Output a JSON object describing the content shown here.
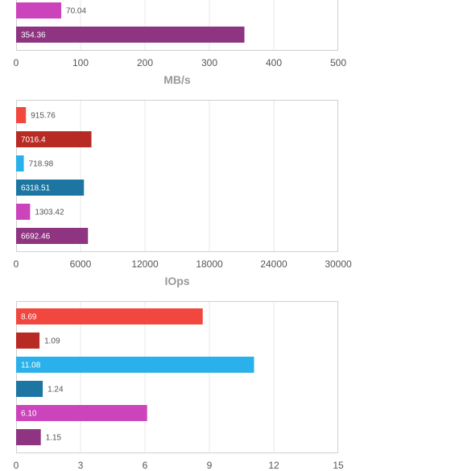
{
  "chart_data": [
    {
      "type": "bar",
      "orientation": "horizontal",
      "xlabel": "MB/s",
      "xlim": [
        0,
        500
      ],
      "ticks": [
        "0",
        "100",
        "200",
        "300",
        "400",
        "500"
      ],
      "grid": true,
      "bars": [
        {
          "label": "70.04",
          "value": 70.04,
          "color": "#cc44bb"
        },
        {
          "label": "354.36",
          "value": 354.36,
          "color": "#8e3480"
        }
      ]
    },
    {
      "type": "bar",
      "orientation": "horizontal",
      "xlabel": "IOps",
      "xlim": [
        0,
        30000
      ],
      "ticks": [
        "0",
        "6000",
        "12000",
        "18000",
        "24000",
        "30000"
      ],
      "grid": true,
      "bars": [
        {
          "label": "915.76",
          "value": 915.76,
          "color": "#f2473f"
        },
        {
          "label": "7016.4",
          "value": 7016.4,
          "color": "#b82b24"
        },
        {
          "label": "718.98",
          "value": 718.98,
          "color": "#2ab0ea"
        },
        {
          "label": "6318.51",
          "value": 6318.51,
          "color": "#1d76a2"
        },
        {
          "label": "1303.42",
          "value": 1303.42,
          "color": "#cc44bb"
        },
        {
          "label": "6692.46",
          "value": 6692.46,
          "color": "#8e3480"
        }
      ]
    },
    {
      "type": "bar",
      "orientation": "horizontal",
      "xlabel": "",
      "xlim": [
        0,
        15
      ],
      "ticks": [
        "0",
        "3",
        "6",
        "9",
        "12",
        "15"
      ],
      "grid": true,
      "bars": [
        {
          "label": "8.69",
          "value": 8.69,
          "color": "#f2473f"
        },
        {
          "label": "1.09",
          "value": 1.09,
          "color": "#b82b24"
        },
        {
          "label": "11.08",
          "value": 11.08,
          "color": "#2ab0ea"
        },
        {
          "label": "1.24",
          "value": 1.24,
          "color": "#1d76a2"
        },
        {
          "label": "6.10",
          "value": 6.1,
          "color": "#cc44bb"
        },
        {
          "label": "1.15",
          "value": 1.15,
          "color": "#8e3480"
        }
      ]
    }
  ]
}
